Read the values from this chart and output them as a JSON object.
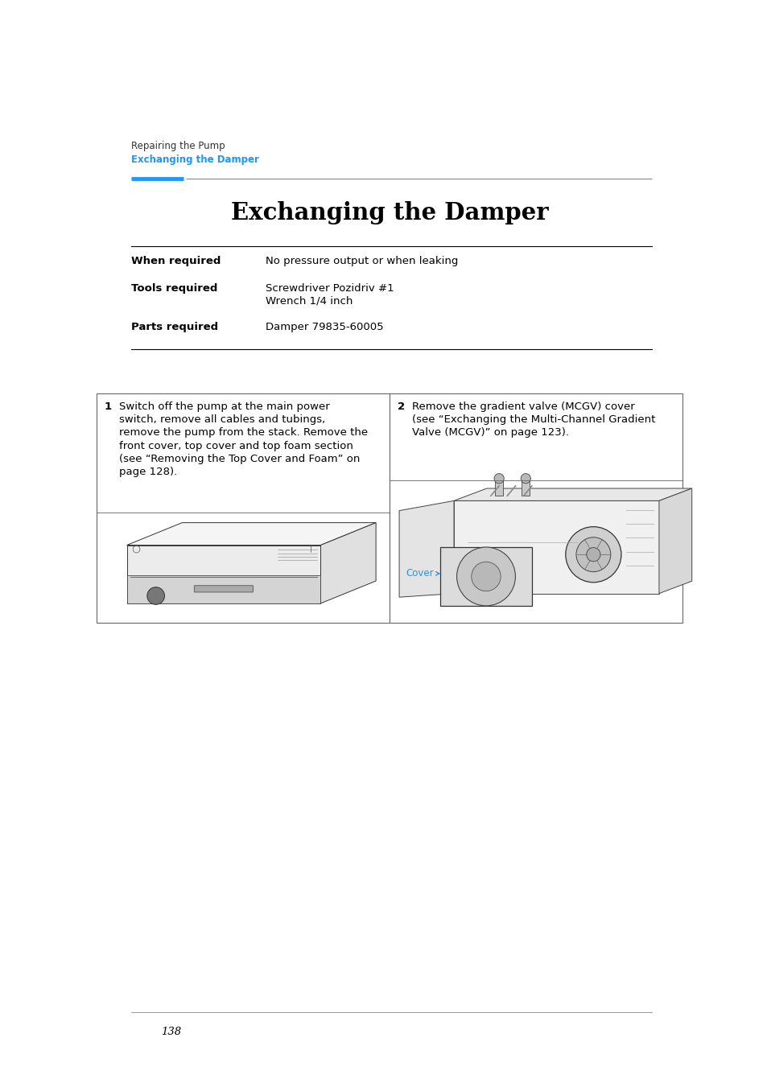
{
  "bg_color": "#ffffff",
  "breadcrumb_line1": "Repairing the Pump",
  "breadcrumb_line2": "Exchanging the Damper",
  "breadcrumb_color": "#2196F3",
  "breadcrumb_line1_color": "#333333",
  "main_title": "Exchanging the Damper",
  "table_rows": [
    {
      "label": "When required",
      "value": "No pressure output or when leaking"
    },
    {
      "label": "Tools required",
      "value": "Screwdriver Pozidriv #1\nWrench 1/4 inch"
    },
    {
      "label": "Parts required",
      "value": "Damper 79835-60005"
    }
  ],
  "step1_num": "1",
  "step1_text": "Switch off the pump at the main power\nswitch, remove all cables and tubings,\nremove the pump from the stack. Remove the\nfront cover, top cover and top foam section\n(see “Removing the Top Cover and Foam” on\npage 128).",
  "step2_num": "2",
  "step2_text": "Remove the gradient valve (MCGV) cover\n(see “Exchanging the Multi-Channel Gradient\nValve (MCGV)” on page 123).",
  "cover_label": "Cover",
  "cover_label_color": "#2196F3",
  "page_number": "138",
  "blue_bar_color": "#2196F3",
  "line_color": "#888888",
  "dark_line_color": "#000000",
  "box_line_color": "#666666"
}
